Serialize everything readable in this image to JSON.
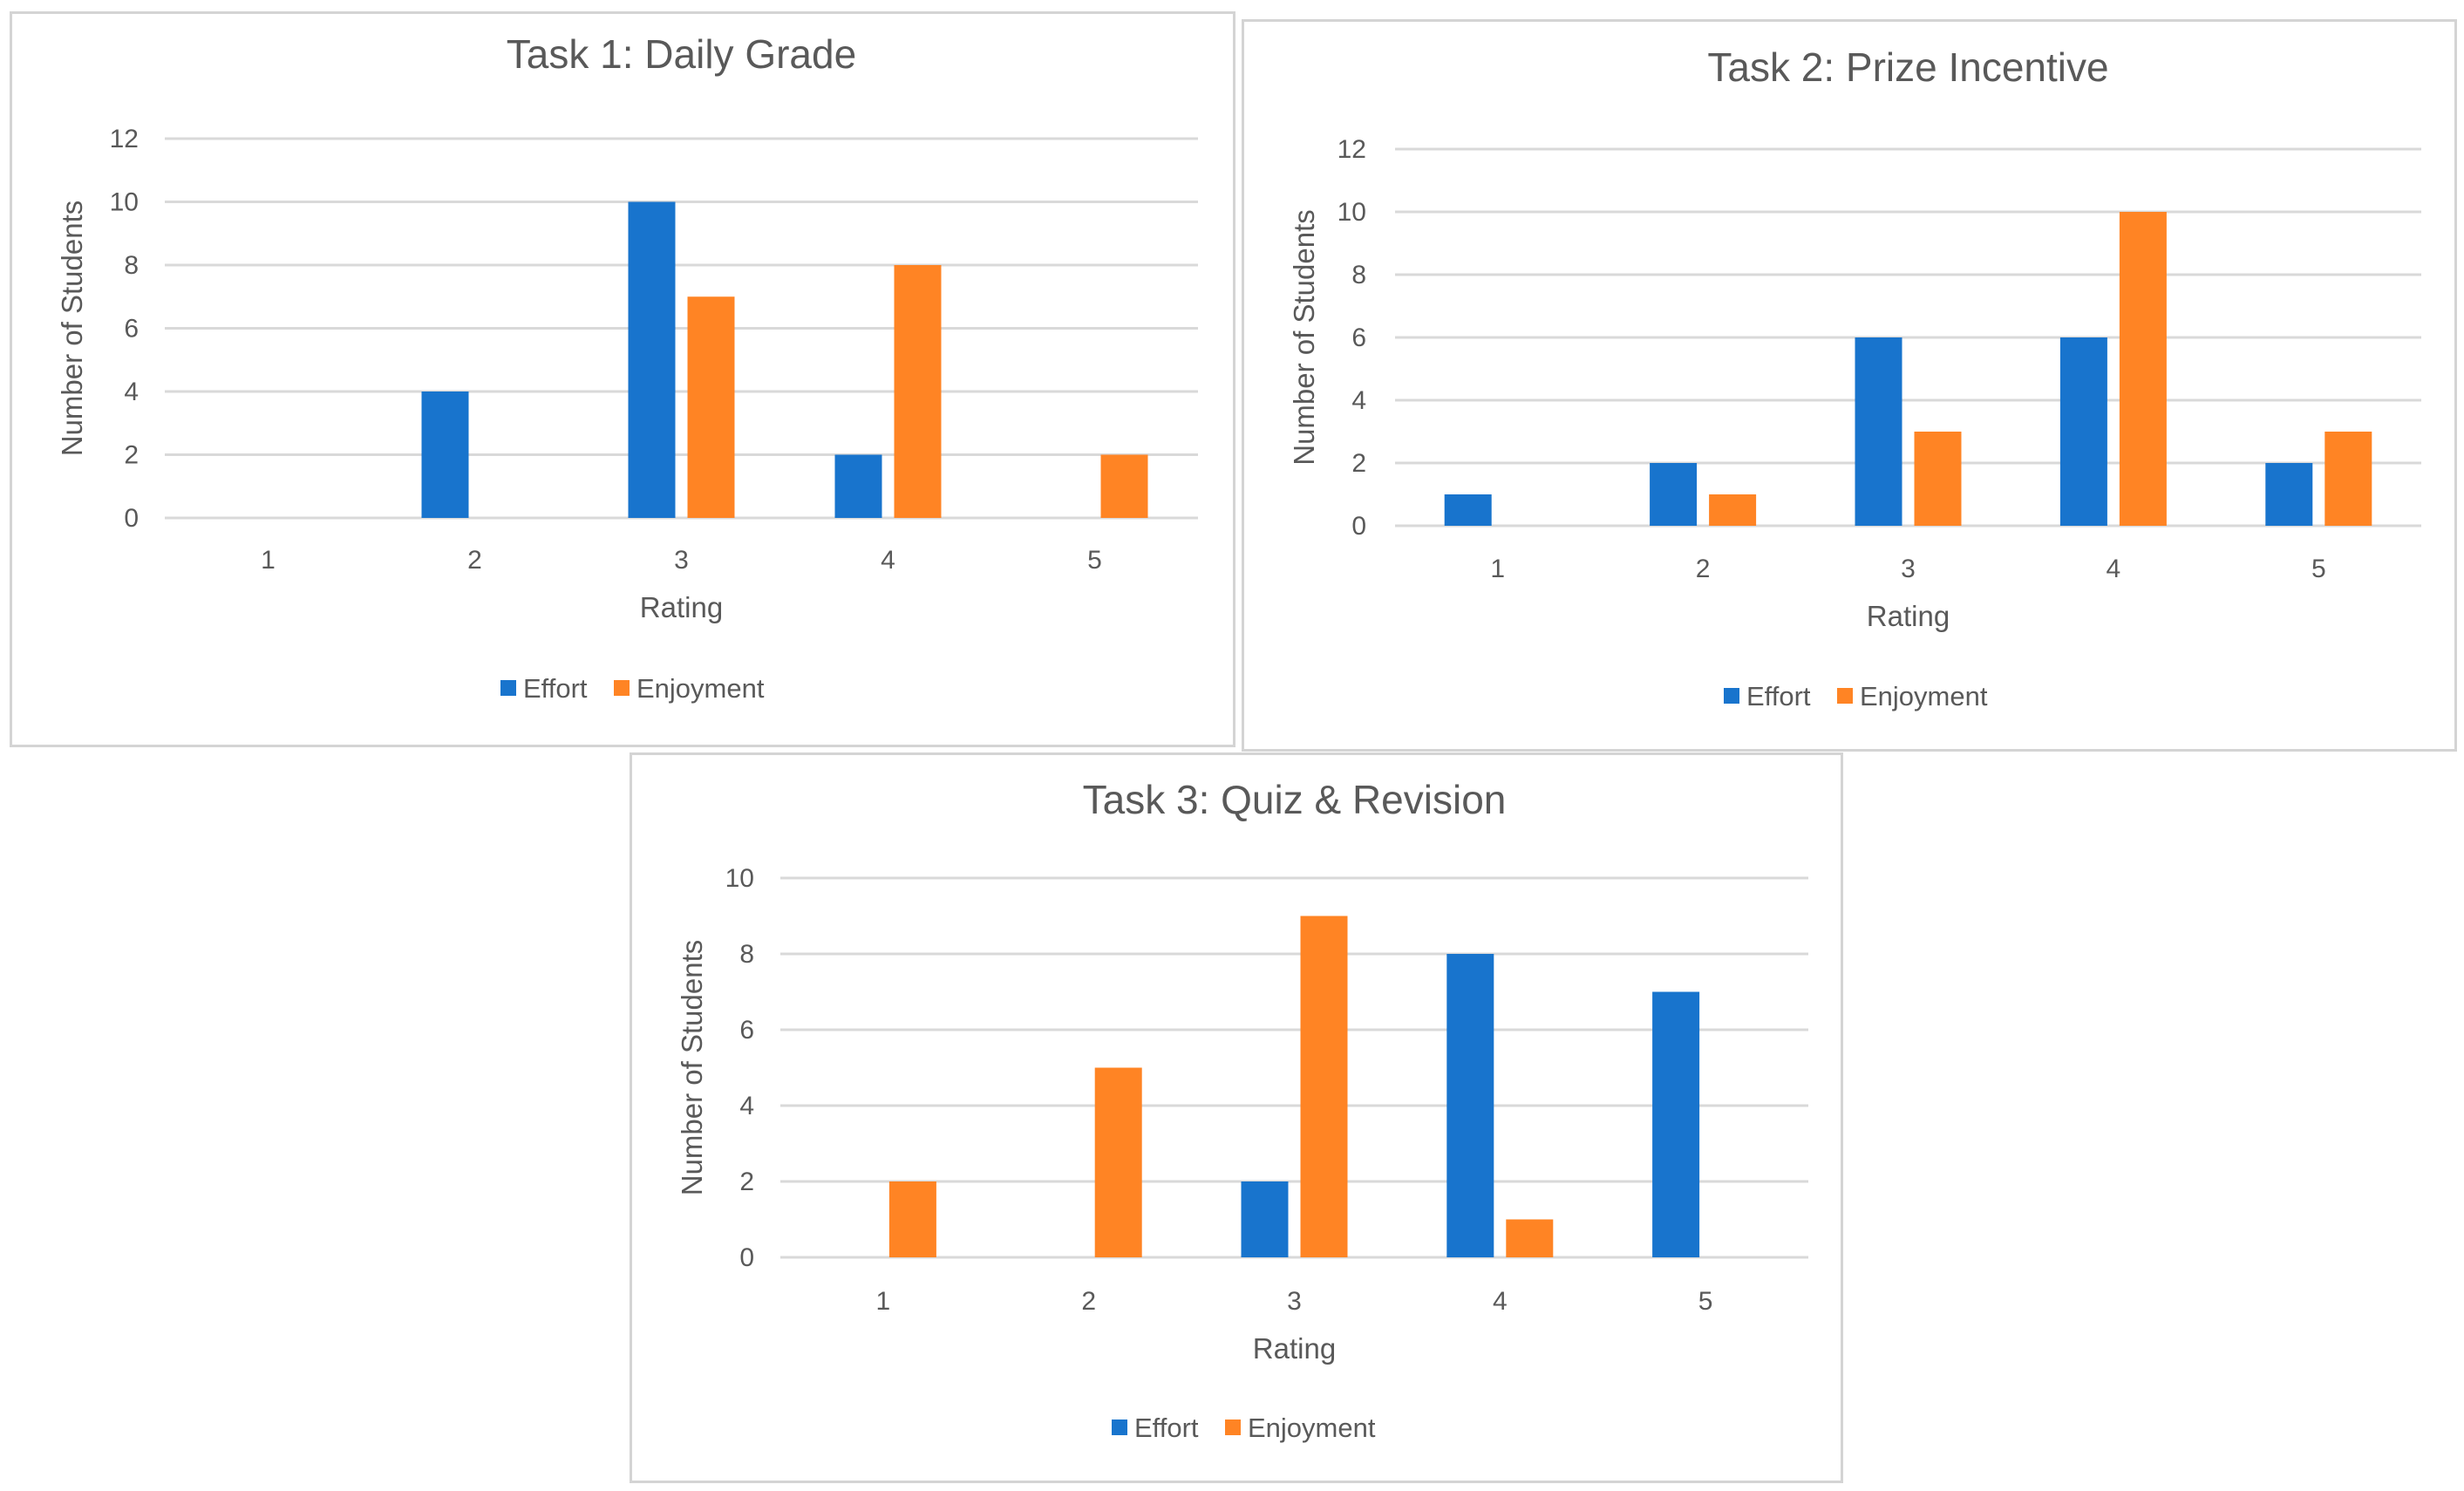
{
  "chart_data": [
    {
      "type": "bar",
      "title": "Task 1: Daily Grade",
      "xlabel": "Rating",
      "ylabel": "Number of Students",
      "categories": [
        "1",
        "2",
        "3",
        "4",
        "5"
      ],
      "yticks": [
        0,
        2,
        4,
        6,
        8,
        10,
        12
      ],
      "ylim": [
        0,
        12
      ],
      "grid": true,
      "legend_position": "bottom",
      "series": [
        {
          "name": "Effort",
          "color": "#1874CD",
          "values": [
            0,
            4,
            10,
            2,
            0
          ]
        },
        {
          "name": "Enjoyment",
          "color": "#FF8424",
          "values": [
            0,
            0,
            7,
            8,
            2
          ]
        }
      ]
    },
    {
      "type": "bar",
      "title": "Task 2: Prize Incentive",
      "xlabel": "Rating",
      "ylabel": "Number of Students",
      "categories": [
        "1",
        "2",
        "3",
        "4",
        "5"
      ],
      "yticks": [
        0,
        2,
        4,
        6,
        8,
        10,
        12
      ],
      "ylim": [
        0,
        12
      ],
      "grid": true,
      "legend_position": "bottom",
      "series": [
        {
          "name": "Effort",
          "color": "#1874CD",
          "values": [
            1,
            2,
            6,
            6,
            2
          ]
        },
        {
          "name": "Enjoyment",
          "color": "#FF8424",
          "values": [
            0,
            1,
            3,
            10,
            3
          ]
        }
      ]
    },
    {
      "type": "bar",
      "title": "Task 3: Quiz & Revision",
      "xlabel": "Rating",
      "ylabel": "Number of Students",
      "categories": [
        "1",
        "2",
        "3",
        "4",
        "5"
      ],
      "yticks": [
        0,
        2,
        4,
        6,
        8,
        10
      ],
      "ylim": [
        0,
        10
      ],
      "grid": true,
      "legend_position": "bottom",
      "series": [
        {
          "name": "Effort",
          "color": "#1874CD",
          "values": [
            0,
            0,
            2,
            8,
            7
          ]
        },
        {
          "name": "Enjoyment",
          "color": "#FF8424",
          "values": [
            2,
            5,
            9,
            1,
            0
          ]
        }
      ]
    }
  ]
}
